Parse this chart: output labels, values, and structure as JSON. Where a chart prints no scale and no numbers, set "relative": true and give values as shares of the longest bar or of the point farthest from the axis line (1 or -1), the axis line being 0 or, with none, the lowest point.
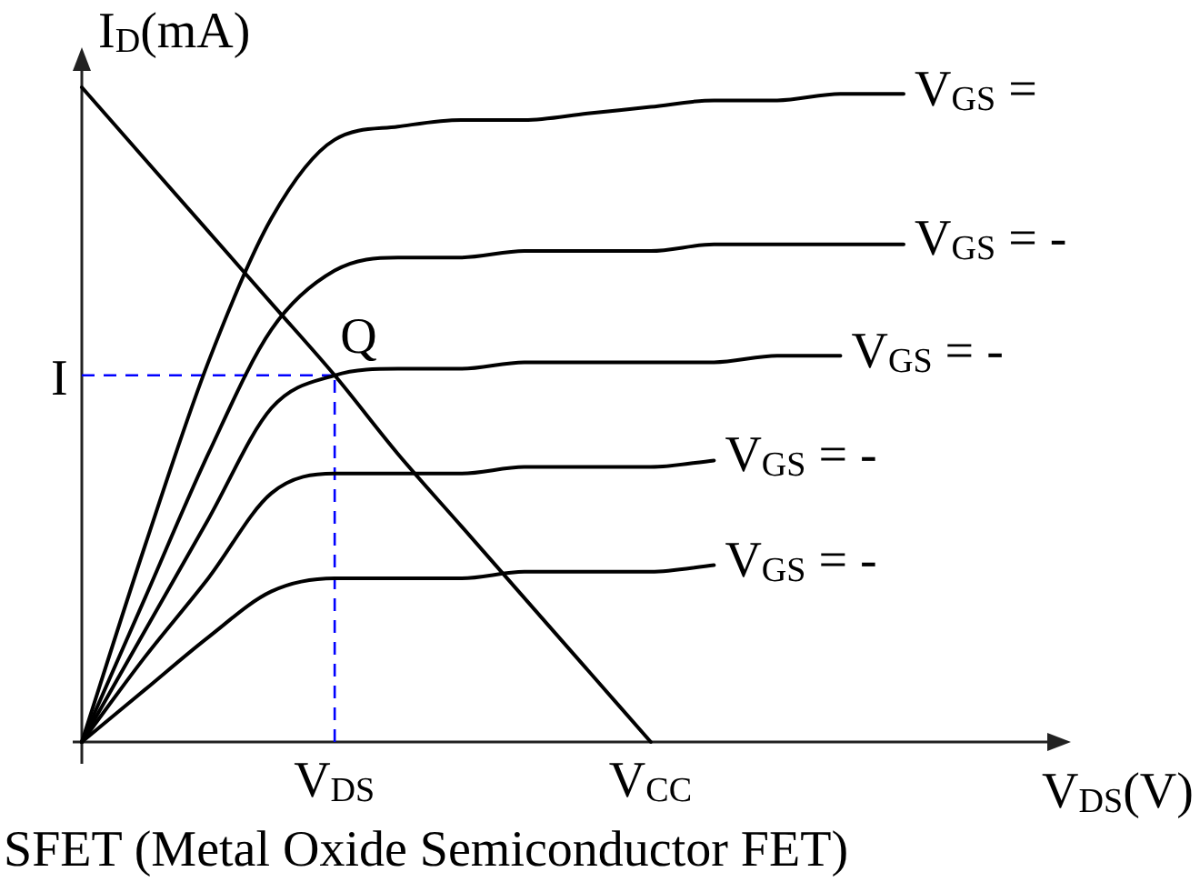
{
  "chart_data": {
    "type": "line",
    "xlabel": "V$_{DS}$(V)",
    "ylabel": "I$_{D}$(mA)",
    "relative": true,
    "tick_labels": "x",
    "marker": "none",
    "categories": [
      null,
      null,
      null,
      null,
      "V$_{DS}$",
      null,
      null,
      null,
      null,
      "V$_{CC}$",
      null,
      null,
      null,
      null
    ],
    "series": [
      {
        "name": "V$_{GS}$ =",
        "color": "#000000",
        "values": [
          0,
          0.3,
          0.58,
          0.8,
          0.92,
          0.94,
          0.95,
          0.95,
          0.96,
          0.97,
          0.98,
          0.98,
          0.99,
          0.99
        ]
      },
      {
        "name": "V$_{GS}$ = -",
        "color": "#000000",
        "values": [
          0,
          0.22,
          0.44,
          0.63,
          0.72,
          0.74,
          0.74,
          0.75,
          0.75,
          0.75,
          0.76,
          0.76,
          0.76,
          0.76
        ]
      },
      {
        "name": "V$_{GS}$ = -",
        "color": "#000000",
        "values": [
          0,
          0.17,
          0.34,
          0.51,
          0.56,
          0.57,
          0.57,
          0.58,
          0.58,
          0.58,
          0.58,
          0.59,
          0.59,
          null
        ]
      },
      {
        "name": "V$_{GS}$ = -",
        "color": "#000000",
        "values": [
          0,
          0.13,
          0.25,
          0.38,
          0.41,
          0.41,
          0.41,
          0.42,
          0.42,
          0.42,
          0.43,
          null,
          null,
          null
        ]
      },
      {
        "name": "V$_{GS}$ = -",
        "color": "#000000",
        "values": [
          0,
          0.08,
          0.16,
          0.23,
          0.25,
          0.25,
          0.25,
          0.26,
          0.26,
          0.26,
          0.27,
          null,
          null,
          null
        ]
      },
      {
        "color": "#000000",
        "values": [
          1,
          0.89,
          0.78,
          0.67,
          0.56,
          0.44,
          0.33,
          0.22,
          0.11,
          0,
          null,
          null,
          null,
          null
        ]
      }
    ],
    "ref_lines": [
      {
        "axis": "y",
        "value": 0.56,
        "label": "I",
        "color": "#0000ff",
        "line_style": "dashed"
      },
      {
        "axis": "x",
        "value": "V$_{DS}$",
        "color": "#0000ff",
        "line_style": "dashed"
      }
    ],
    "annotations": [
      {
        "text": "Q",
        "x": "V$_{DS}$",
        "y": 0.56
      },
      "SFET (Metal Oxide Semiconductor FET)"
    ]
  }
}
